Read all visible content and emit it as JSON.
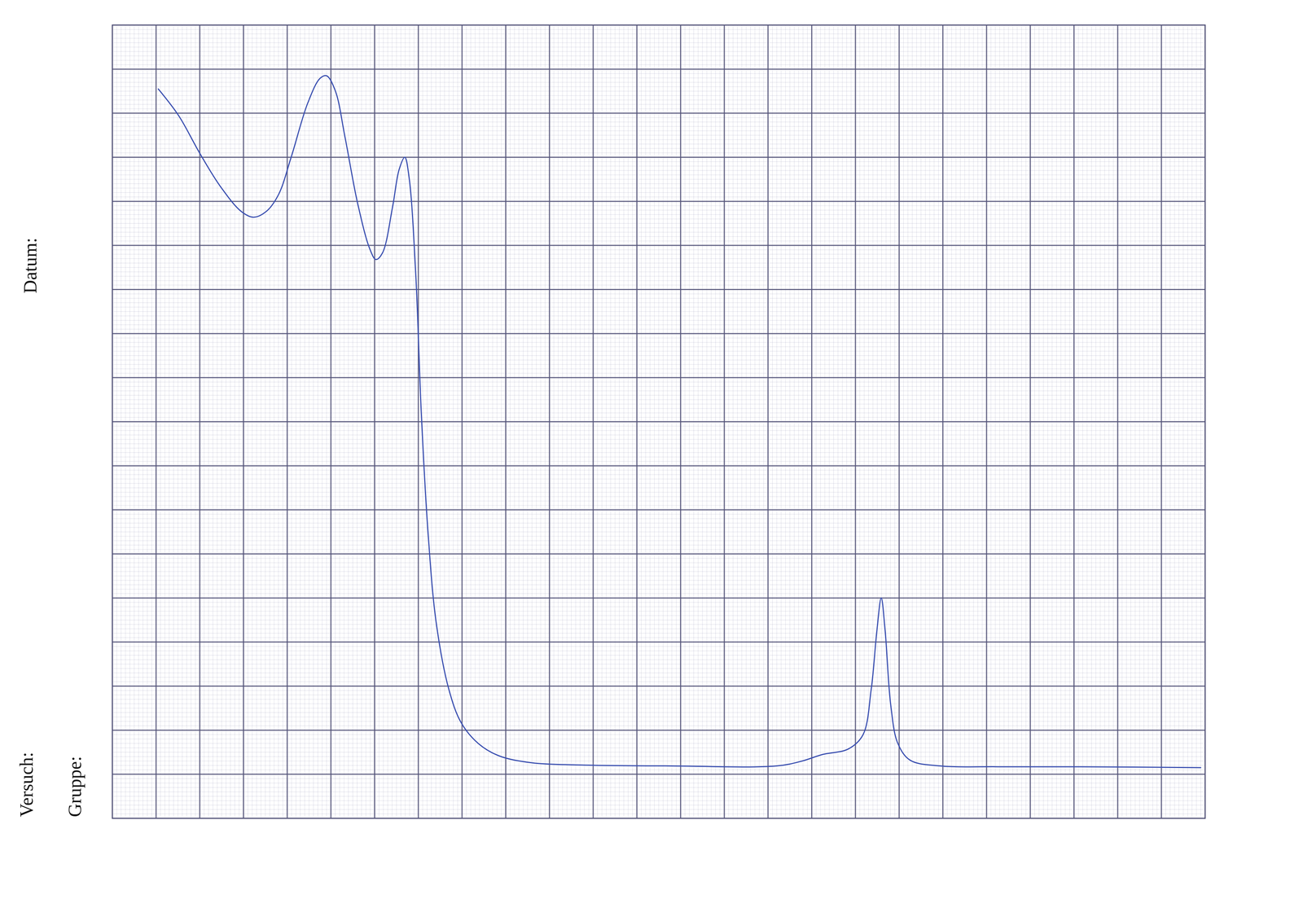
{
  "chart_data": {
    "type": "line",
    "annotations": [
      "Datum:",
      "Versuch:",
      "Gruppe:"
    ],
    "x": [
      1.05,
      1.52,
      2.0,
      2.47,
      2.95,
      3.23,
      3.52,
      3.8,
      4.09,
      4.47,
      4.75,
      4.9,
      5.1,
      5.32,
      5.61,
      5.89,
      6.03,
      6.18,
      6.41,
      6.56,
      6.69,
      6.79,
      6.94,
      7.07,
      7.22,
      7.41,
      7.7,
      7.98,
      8.37,
      8.84,
      9.6,
      10.74,
      12.64,
      15.21,
      15.78,
      16.25,
      16.83,
      17.17,
      17.36,
      17.49,
      17.59,
      17.68,
      17.81,
      17.97,
      18.25,
      18.92,
      20.25,
      22.15,
      24.9
    ],
    "values": [
      16.55,
      15.94,
      15.09,
      14.34,
      13.77,
      13.64,
      13.77,
      14.15,
      15.0,
      16.23,
      16.79,
      16.85,
      16.51,
      15.47,
      13.96,
      12.92,
      12.68,
      12.83,
      13.87,
      14.72,
      15.0,
      14.53,
      12.36,
      9.15,
      6.51,
      4.43,
      2.92,
      2.17,
      1.7,
      1.42,
      1.26,
      1.21,
      1.19,
      1.19,
      1.3,
      1.45,
      1.57,
      1.89,
      2.92,
      4.25,
      5.0,
      4.25,
      2.55,
      1.7,
      1.32,
      1.19,
      1.17,
      1.17,
      1.15
    ],
    "color": "#3a4fb0",
    "xlim": [
      0,
      25
    ],
    "ylim": [
      0,
      18
    ],
    "xticks": [
      0,
      1,
      2,
      3,
      4,
      5,
      6,
      7,
      8,
      9,
      10,
      11,
      12,
      13,
      14,
      15,
      16,
      17,
      18,
      19,
      20,
      21,
      22,
      23,
      24,
      25
    ],
    "yticks": [
      0,
      1,
      2,
      3,
      4,
      5,
      6,
      7,
      8,
      9,
      10,
      11,
      12,
      13,
      14,
      15,
      16,
      17,
      18
    ],
    "grid": true,
    "tick_labels": false
  }
}
